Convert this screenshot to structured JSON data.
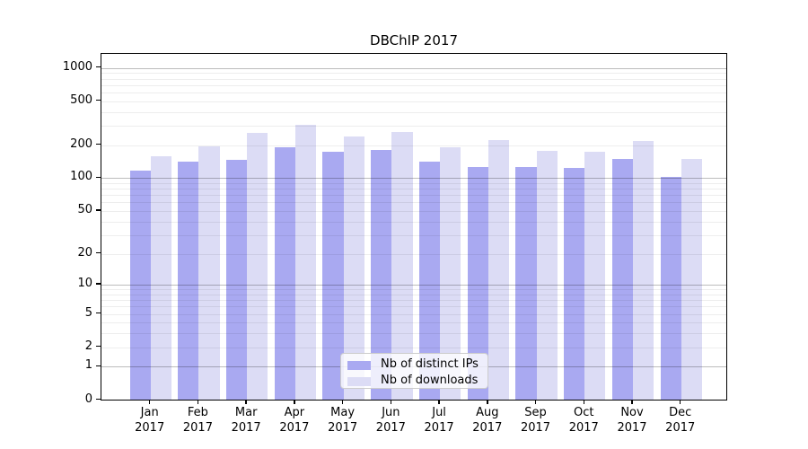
{
  "title": "DBChIP 2017",
  "colors": {
    "ips": "#a9a9f1",
    "downloads": "#dcdcf5",
    "grid_minor": "rgba(0,0,0,0.07)",
    "grid_major": "rgba(0,0,0,0.26)",
    "spine": "#000000",
    "legend_border": "#cccccc",
    "legend_bg": "rgba(255,255,255,0.8)"
  },
  "legend": {
    "items": [
      {
        "label": "Nb of distinct IPs",
        "color": "#a9a9f1"
      },
      {
        "label": "Nb of downloads",
        "color": "#dcdcf5"
      }
    ]
  },
  "chart_data": {
    "type": "bar",
    "title": "DBChIP 2017",
    "yscale": "log10(1+y)",
    "grid": "on",
    "legend_position": "lower center",
    "categories": [
      "Jan",
      "Feb",
      "Mar",
      "Apr",
      "May",
      "Jun",
      "Jul",
      "Aug",
      "Sep",
      "Oct",
      "Nov",
      "Dec"
    ],
    "category_year": "2017",
    "series": [
      {
        "name": "Nb of distinct IPs",
        "values": [
          116,
          138,
          143,
          188,
          170,
          178,
          140,
          125,
          124,
          121,
          146,
          100
        ]
      },
      {
        "name": "Nb of downloads",
        "values": [
          156,
          191,
          253,
          300,
          233,
          259,
          188,
          218,
          175,
          170,
          215,
          148
        ]
      }
    ],
    "yticks": [
      0,
      1,
      2,
      5,
      10,
      20,
      50,
      100,
      200,
      500,
      1000
    ],
    "ylim": [
      0,
      1340
    ]
  }
}
